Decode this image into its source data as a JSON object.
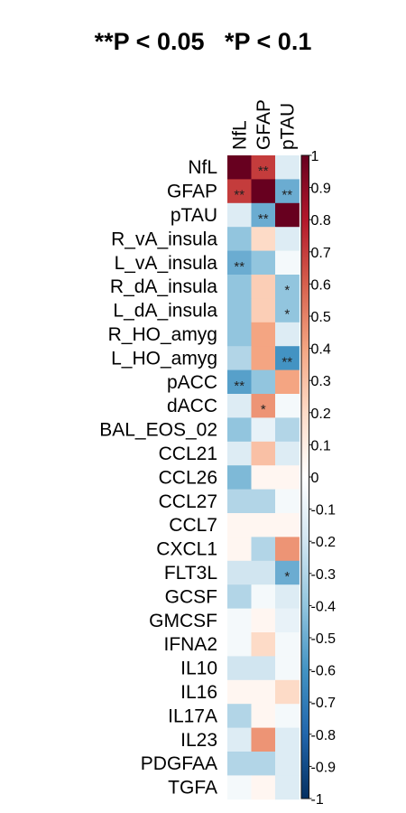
{
  "chart_data": {
    "type": "heatmap",
    "title": "**P < 0.05   *P < 0.1",
    "columns": [
      "NfL",
      "GFAP",
      "pTAU"
    ],
    "rows": [
      "NfL",
      "GFAP",
      "pTAU",
      "R_vA_insula",
      "L_vA_insula",
      "R_dA_insula",
      "L_dA_insula",
      "R_HO_amyg",
      "L_HO_amyg",
      "pACC",
      "dACC",
      "BAL_EOS_02",
      "CCL21",
      "CCL26",
      "CCL27",
      "CCL7",
      "CXCL1",
      "FLT3L",
      "GCSF",
      "GMCSF",
      "IFNA2",
      "IL10",
      "IL16",
      "IL17A",
      "IL23",
      "PDGFAA",
      "TGFA"
    ],
    "values": [
      [
        1.0,
        0.7,
        -0.15
      ],
      [
        0.7,
        1.0,
        -0.5
      ],
      [
        -0.15,
        -0.5,
        1.0
      ],
      [
        -0.4,
        0.2,
        -0.15
      ],
      [
        -0.5,
        -0.4,
        -0.05
      ],
      [
        -0.4,
        0.25,
        -0.4
      ],
      [
        -0.4,
        0.25,
        -0.4
      ],
      [
        -0.4,
        0.4,
        -0.15
      ],
      [
        -0.3,
        0.4,
        -0.6
      ],
      [
        -0.55,
        -0.4,
        0.4
      ],
      [
        -0.15,
        0.45,
        -0.05
      ],
      [
        -0.4,
        -0.1,
        -0.3
      ],
      [
        -0.15,
        0.3,
        -0.15
      ],
      [
        -0.45,
        0.05,
        0.05
      ],
      [
        -0.3,
        -0.3,
        -0.05
      ],
      [
        0.05,
        0.05,
        0.05
      ],
      [
        0.05,
        -0.3,
        0.45
      ],
      [
        -0.2,
        -0.2,
        -0.5
      ],
      [
        -0.3,
        -0.05,
        -0.15
      ],
      [
        -0.05,
        0.05,
        -0.1
      ],
      [
        -0.05,
        0.2,
        -0.05
      ],
      [
        -0.2,
        -0.2,
        -0.05
      ],
      [
        0.05,
        0.05,
        0.2
      ],
      [
        -0.3,
        0.05,
        -0.05
      ],
      [
        -0.15,
        0.45,
        -0.15
      ],
      [
        -0.3,
        -0.3,
        -0.15
      ],
      [
        -0.05,
        0.05,
        -0.15
      ]
    ],
    "significance": [
      [
        "",
        "**",
        ""
      ],
      [
        "**",
        "",
        "**"
      ],
      [
        "",
        "**",
        ""
      ],
      [
        "",
        "",
        ""
      ],
      [
        "**",
        "",
        ""
      ],
      [
        "",
        "",
        "*"
      ],
      [
        "",
        "",
        "*"
      ],
      [
        "",
        "",
        ""
      ],
      [
        "",
        "",
        "**"
      ],
      [
        "**",
        "",
        ""
      ],
      [
        "",
        "*",
        ""
      ],
      [
        "",
        "",
        ""
      ],
      [
        "",
        "",
        ""
      ],
      [
        "",
        "",
        ""
      ],
      [
        "",
        "",
        ""
      ],
      [
        "",
        "",
        ""
      ],
      [
        "",
        "",
        ""
      ],
      [
        "",
        "",
        "*"
      ],
      [
        "",
        "",
        ""
      ],
      [
        "",
        "",
        ""
      ],
      [
        "",
        "",
        ""
      ],
      [
        "",
        "",
        ""
      ],
      [
        "",
        "",
        ""
      ],
      [
        "",
        "",
        ""
      ],
      [
        "",
        "",
        ""
      ],
      [
        "",
        "",
        ""
      ],
      [
        "",
        "",
        ""
      ]
    ],
    "colorbar": {
      "range": [
        -1,
        1
      ],
      "ticks": [
        1,
        0.9,
        0.8,
        0.7,
        0.6,
        0.5,
        0.4,
        0.3,
        0.2,
        0.1,
        0,
        -0.1,
        -0.2,
        -0.3,
        -0.4,
        -0.5,
        -0.6,
        -0.7,
        -0.8,
        -0.9,
        -1
      ],
      "tick_labels": [
        "1",
        "0.9",
        "0.8",
        "0.7",
        "0.6",
        "0.5",
        "0.4",
        "0.3",
        "0.2",
        "0.1",
        "0",
        "-0.1",
        "-0.2",
        "-0.3",
        "-0.4",
        "-0.5",
        "-0.6",
        "-0.7",
        "-0.8",
        "-0.9",
        "-1"
      ],
      "colors": [
        "#053061",
        "#2166ac",
        "#4393c3",
        "#92c5de",
        "#d1e5f0",
        "#ffffff",
        "#fddbc7",
        "#f4a582",
        "#d6604d",
        "#b2182b",
        "#67001f"
      ]
    }
  }
}
